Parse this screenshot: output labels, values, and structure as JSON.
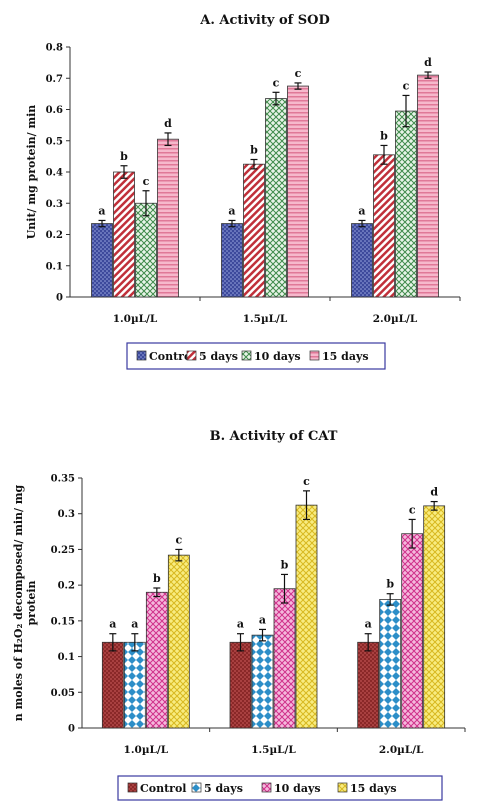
{
  "chart_data": [
    {
      "type": "bar",
      "title": "A. Activity of SOD",
      "ylabel": "Unit/ mg protein/ min",
      "xlabel": "",
      "ylim": [
        0,
        0.8
      ],
      "yticks": [
        "0",
        "0.1",
        "0.2",
        "0.3",
        "0.4",
        "0.5",
        "0.6",
        "0.7",
        "0.8"
      ],
      "categories": [
        "1.0µL/L",
        "1.5µL/L",
        "2.0µL/L"
      ],
      "grid": false,
      "legend_position": "bottom",
      "series": [
        {
          "name": "Control",
          "values": [
            0.235,
            0.235,
            0.235
          ],
          "errors": [
            0.01,
            0.01,
            0.01
          ],
          "labels": [
            "a",
            "a",
            "a"
          ],
          "color": "#4a55a8"
        },
        {
          "name": "5 days",
          "values": [
            0.4,
            0.425,
            0.455
          ],
          "errors": [
            0.02,
            0.015,
            0.03
          ],
          "labels": [
            "b",
            "b",
            "b"
          ],
          "color": "#c0303a"
        },
        {
          "name": "10 days",
          "values": [
            0.3,
            0.635,
            0.595
          ],
          "errors": [
            0.04,
            0.02,
            0.05
          ],
          "labels": [
            "c",
            "c",
            "c"
          ],
          "color": "#4f9a5a"
        },
        {
          "name": "15 days",
          "values": [
            0.505,
            0.675,
            0.71
          ],
          "errors": [
            0.02,
            0.01,
            0.01
          ],
          "labels": [
            "d",
            "c",
            "d"
          ],
          "color": "#f0a0b8"
        }
      ]
    },
    {
      "type": "bar",
      "title": "B. Activity of CAT",
      "ylabel_lines": [
        "n moles of H₂O₂ decomposed/ min/ mg",
        "protein"
      ],
      "xlabel": "",
      "ylim": [
        0,
        0.35
      ],
      "yticks": [
        "0",
        "0.05",
        "0.1",
        "0.15",
        "0.2",
        "0.25",
        "0.3",
        "0.35"
      ],
      "categories": [
        "1.0µL/L",
        "1.5µL/L",
        "2.0µL/L"
      ],
      "grid": false,
      "legend_position": "bottom",
      "series": [
        {
          "name": "Control",
          "values": [
            0.12,
            0.12,
            0.12
          ],
          "errors": [
            0.012,
            0.012,
            0.012
          ],
          "labels": [
            "a",
            "a",
            "a"
          ],
          "color": "#9a3030"
        },
        {
          "name": "5 days",
          "values": [
            0.12,
            0.13,
            0.18
          ],
          "errors": [
            0.012,
            0.008,
            0.008
          ],
          "labels": [
            "a",
            "a",
            "b"
          ],
          "color": "#2c8ec8"
        },
        {
          "name": "10 days",
          "values": [
            0.19,
            0.195,
            0.272
          ],
          "errors": [
            0.006,
            0.02,
            0.02
          ],
          "labels": [
            "b",
            "b",
            "c"
          ],
          "color": "#d83a9a"
        },
        {
          "name": "15 days",
          "values": [
            0.242,
            0.312,
            0.311
          ],
          "errors": [
            0.008,
            0.02,
            0.006
          ],
          "labels": [
            "c",
            "c",
            "d"
          ],
          "color": "#e8d040"
        }
      ]
    }
  ]
}
